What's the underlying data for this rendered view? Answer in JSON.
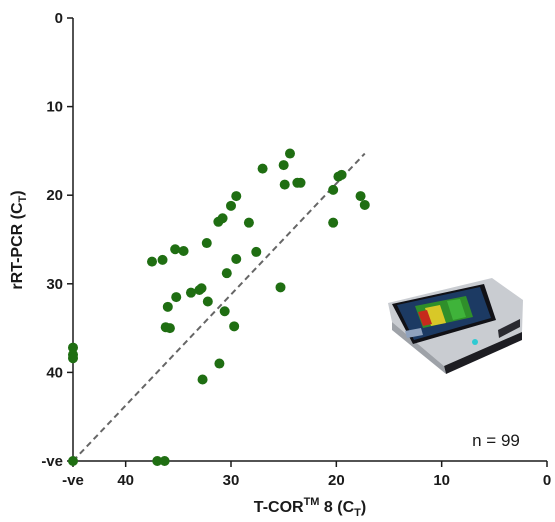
{
  "chart_data": {
    "type": "scatter",
    "xlabel": {
      "main": "T-COR",
      "sup": "TM",
      "mid": " 8 (C",
      "sub": "T",
      "end": ")"
    },
    "ylabel": {
      "main": "rRT-PCR (C",
      "sub": "T",
      "end": ")"
    },
    "x_axis": {
      "reversed": true,
      "negative_position": 45,
      "range": [
        0,
        45
      ],
      "ticks": [
        {
          "value": 45,
          "label": "-ve"
        },
        {
          "value": 40,
          "label": "40"
        },
        {
          "value": 30,
          "label": "30"
        },
        {
          "value": 20,
          "label": "20"
        },
        {
          "value": 10,
          "label": "10"
        },
        {
          "value": 0,
          "label": "0"
        }
      ]
    },
    "y_axis": {
      "reversed": true,
      "negative_position": 50,
      "range": [
        0,
        50
      ],
      "ticks": [
        {
          "value": 0,
          "label": "0"
        },
        {
          "value": 10,
          "label": "10"
        },
        {
          "value": 20,
          "label": "20"
        },
        {
          "value": 30,
          "label": "30"
        },
        {
          "value": 40,
          "label": "40"
        },
        {
          "value": 50,
          "label": "-ve"
        }
      ]
    },
    "annotation": "n = 99",
    "marker_color": "#1f6e12",
    "trendline": {
      "style": "dashed",
      "color": "#666666",
      "x": [
        45,
        17.3
      ],
      "y": [
        50,
        15.3
      ]
    },
    "points": [
      {
        "x": 45,
        "y": 37.2
      },
      {
        "x": 45,
        "y": 38.0
      },
      {
        "x": 45,
        "y": 38.4
      },
      {
        "x": 45,
        "y": 50
      },
      {
        "x": 37,
        "y": 50
      },
      {
        "x": 36.3,
        "y": 50
      },
      {
        "x": 37.5,
        "y": 27.5
      },
      {
        "x": 36.5,
        "y": 27.3
      },
      {
        "x": 35.3,
        "y": 26.1
      },
      {
        "x": 34.5,
        "y": 26.3
      },
      {
        "x": 32.3,
        "y": 25.4
      },
      {
        "x": 35.2,
        "y": 31.5
      },
      {
        "x": 33.8,
        "y": 31.0
      },
      {
        "x": 33.0,
        "y": 30.7
      },
      {
        "x": 32.8,
        "y": 30.5
      },
      {
        "x": 36.0,
        "y": 32.6
      },
      {
        "x": 32.2,
        "y": 32.0
      },
      {
        "x": 36.2,
        "y": 34.9
      },
      {
        "x": 35.8,
        "y": 35.0
      },
      {
        "x": 31.2,
        "y": 23.0
      },
      {
        "x": 30.8,
        "y": 22.6
      },
      {
        "x": 30.0,
        "y": 21.2
      },
      {
        "x": 29.5,
        "y": 20.1
      },
      {
        "x": 28.3,
        "y": 23.1
      },
      {
        "x": 29.5,
        "y": 27.2
      },
      {
        "x": 27.6,
        "y": 26.4
      },
      {
        "x": 30.6,
        "y": 33.1
      },
      {
        "x": 29.7,
        "y": 34.8
      },
      {
        "x": 31.1,
        "y": 39.0
      },
      {
        "x": 32.7,
        "y": 40.8
      },
      {
        "x": 30.4,
        "y": 28.8
      },
      {
        "x": 27.0,
        "y": 17.0
      },
      {
        "x": 25.3,
        "y": 30.4
      },
      {
        "x": 25.0,
        "y": 16.6
      },
      {
        "x": 24.4,
        "y": 15.3
      },
      {
        "x": 24.9,
        "y": 18.8
      },
      {
        "x": 23.7,
        "y": 18.6
      },
      {
        "x": 23.4,
        "y": 18.6
      },
      {
        "x": 20.3,
        "y": 19.4
      },
      {
        "x": 19.8,
        "y": 17.9
      },
      {
        "x": 19.5,
        "y": 17.7
      },
      {
        "x": 20.3,
        "y": 23.1
      },
      {
        "x": 17.7,
        "y": 20.1
      },
      {
        "x": 17.3,
        "y": 21.1
      }
    ]
  }
}
